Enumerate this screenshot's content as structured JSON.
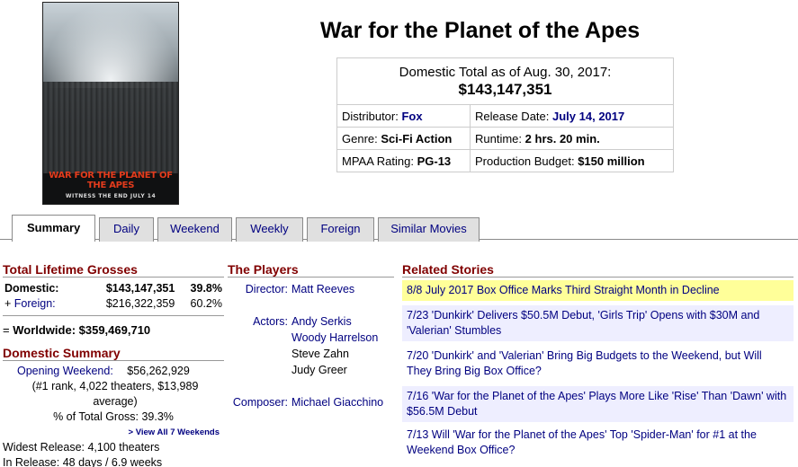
{
  "movie": {
    "title": "War for the Planet of the Apes"
  },
  "poster": {
    "title_text": "WAR FOR THE PLANET OF THE APES",
    "tagline": "WITNESS THE END JULY 14"
  },
  "infobox": {
    "total_label": "Domestic Total as of Aug. 30, 2017:",
    "total_value": "$143,147,351",
    "distributor_label": "Distributor:",
    "distributor": "Fox",
    "release_label": "Release Date:",
    "release_date": "July 14, 2017",
    "genre_label": "Genre:",
    "genre": "Sci-Fi Action",
    "runtime_label": "Runtime:",
    "runtime": "2 hrs. 20 min.",
    "mpaa_label": "MPAA Rating:",
    "mpaa": "PG-13",
    "budget_label": "Production Budget:",
    "budget": "$150 million"
  },
  "tabs": [
    "Summary",
    "Daily",
    "Weekend",
    "Weekly",
    "Foreign",
    "Similar Movies"
  ],
  "grosses": {
    "header": "Total Lifetime Grosses",
    "domestic_label": "Domestic:",
    "domestic_value": "$143,147,351",
    "domestic_pct": "39.8%",
    "foreign_prefix": "+",
    "foreign_label": "Foreign:",
    "foreign_value": "$216,322,359",
    "foreign_pct": "60.2%",
    "worldwide_prefix": "=",
    "worldwide": "Worldwide: $359,469,710"
  },
  "domestic_summary": {
    "header": "Domestic Summary",
    "opening_label": "Opening Weekend:",
    "opening_value": "$56,262,929",
    "opening_detail": "(#1 rank, 4,022 theaters, $13,989 average)",
    "pct_total": "% of Total Gross: 39.3%",
    "view_all": "> View All 7 Weekends",
    "widest": "Widest Release: 4,100 theaters",
    "in_release": "In Release: 48 days / 6.9 weeks"
  },
  "players": {
    "header": "The Players",
    "director_label": "Director:",
    "director": "Matt Reeves",
    "actors_label": "Actors:",
    "actors": [
      "Andy Serkis",
      "Woody Harrelson",
      "Steve Zahn",
      "Judy Greer"
    ],
    "composer_label": "Composer:",
    "composer": "Michael Giacchino"
  },
  "related": {
    "header": "Related Stories",
    "stories": [
      "8/8 July 2017 Box Office Marks Third Straight Month in Decline",
      "7/23 'Dunkirk' Delivers $50.5M Debut, 'Girls Trip' Opens with $30M and 'Valerian' Stumbles",
      "7/20 'Dunkirk' and 'Valerian' Bring Big Budgets to the Weekend, but Will They Bring Big Box Office?",
      "7/16 'War for the Planet of the Apes' Plays More Like 'Rise' Than 'Dawn' with $56.5M Debut",
      "7/13 Will 'War for the Planet of the Apes' Top 'Spider-Man' for #1 at the Weekend Box Office?"
    ]
  }
}
